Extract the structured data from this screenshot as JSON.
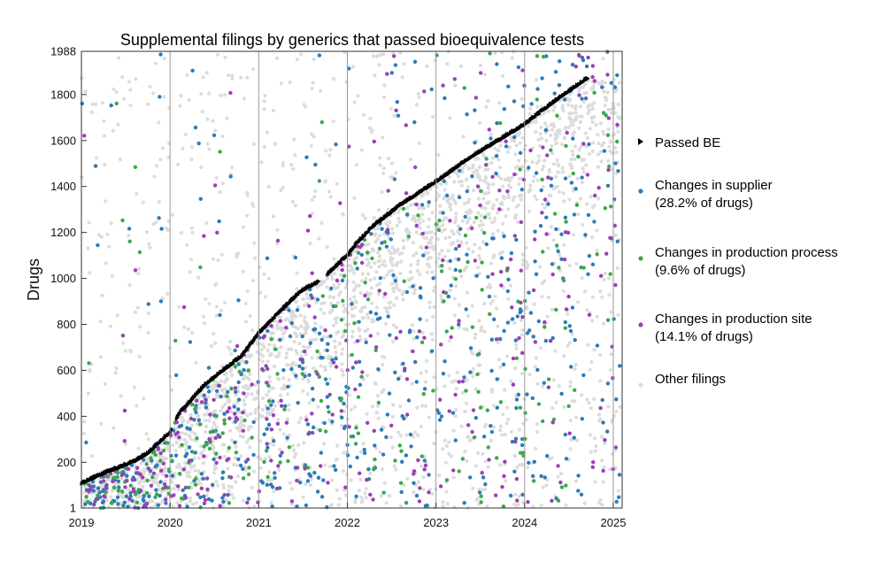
{
  "chart_data": {
    "type": "scatter",
    "title": "Supplemental filings by generics that passed bioequivalence tests",
    "xlabel": "",
    "ylabel": "Drugs",
    "xlim": [
      2019,
      2025.1
    ],
    "ylim": [
      1,
      1988
    ],
    "x_ticks": [
      "2019",
      "2020",
      "2021",
      "2022",
      "2023",
      "2024",
      "2025"
    ],
    "y_ticks": [
      "1",
      "200",
      "400",
      "600",
      "800",
      "1000",
      "1200",
      "1400",
      "1600",
      "1800",
      "1988"
    ],
    "grid": "vertical lines at each year",
    "legend_position": "right",
    "series": [
      {
        "name": "Passed BE",
        "color": "#000000",
        "marker": "triangle",
        "trend_points": [
          [
            2019.0,
            110
          ],
          [
            2019.3,
            160
          ],
          [
            2019.6,
            205
          ],
          [
            2019.75,
            240
          ],
          [
            2020.0,
            330
          ],
          [
            2020.1,
            410
          ],
          [
            2020.4,
            540
          ],
          [
            2020.8,
            660
          ],
          [
            2021.0,
            760
          ],
          [
            2021.3,
            880
          ],
          [
            2021.5,
            950
          ],
          [
            2021.7,
            990
          ],
          [
            2022.0,
            1100
          ],
          [
            2022.1,
            1150
          ],
          [
            2022.3,
            1230
          ],
          [
            2022.6,
            1320
          ],
          [
            2023.0,
            1420
          ],
          [
            2023.4,
            1530
          ],
          [
            2023.7,
            1600
          ],
          [
            2024.0,
            1670
          ],
          [
            2024.3,
            1760
          ],
          [
            2024.7,
            1870
          ]
        ]
      },
      {
        "name": "Changes in supplier",
        "legend_sub": "(28.2% of drugs)",
        "color": "#2e7bb6",
        "marker": "circle"
      },
      {
        "name": "Changes in production process",
        "legend_sub": "(9.6% of drugs)",
        "color": "#3aa84a",
        "marker": "circle"
      },
      {
        "name": "Changes in production site",
        "legend_sub": "(14.1% of drugs)",
        "color": "#9b3fb5",
        "marker": "circle"
      },
      {
        "name": "Other filings",
        "color": "#dcdcdc",
        "marker": "circle"
      }
    ]
  }
}
